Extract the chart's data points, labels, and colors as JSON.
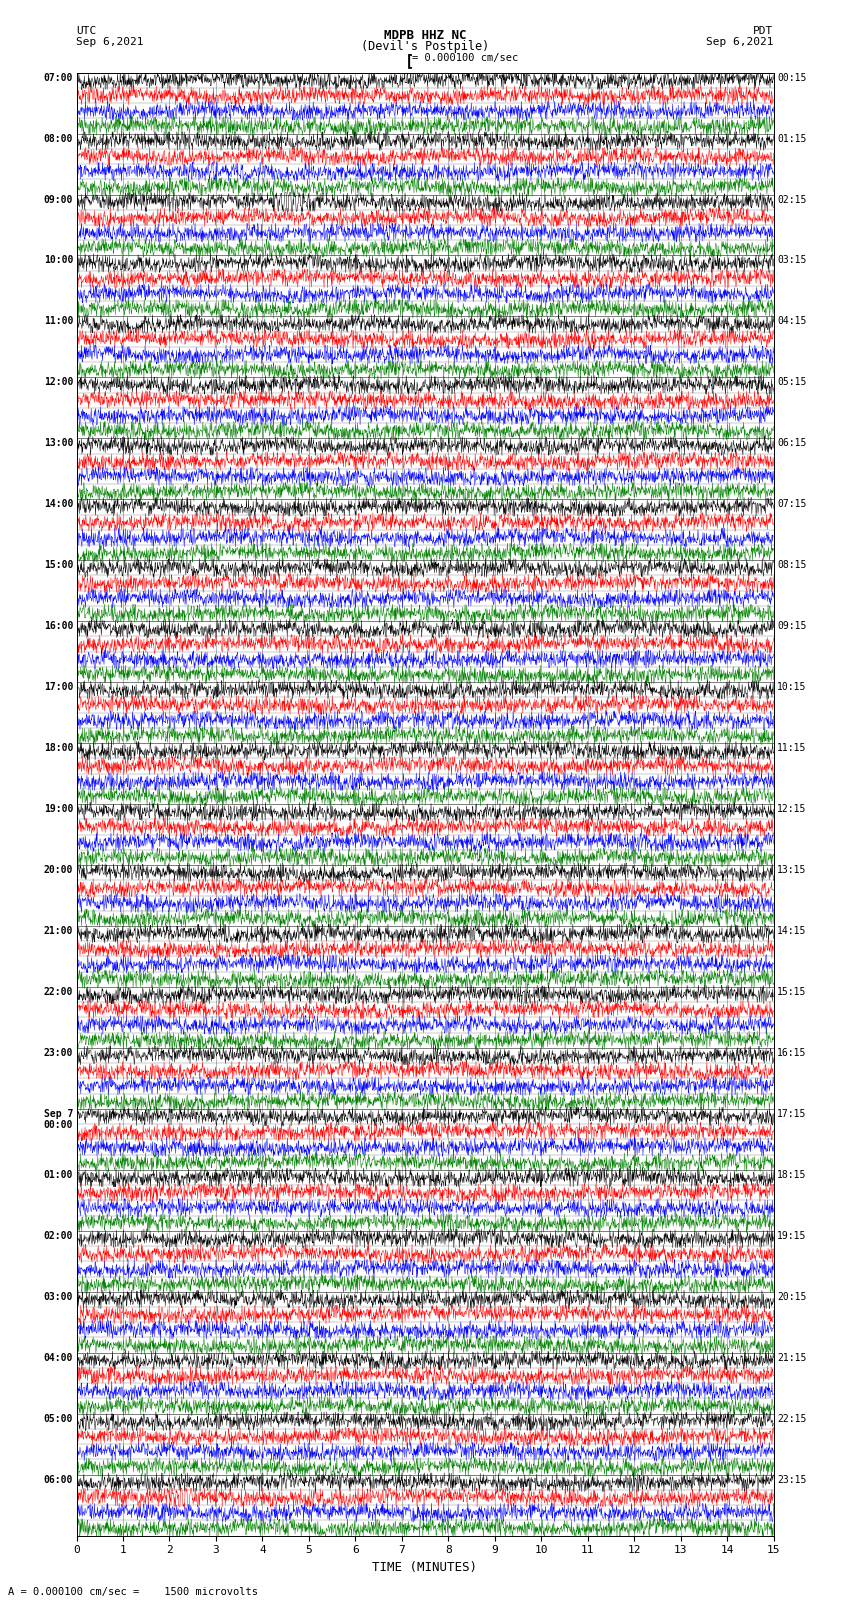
{
  "title_line1": "MDPB HHZ NC",
  "title_line2": "(Devil's Postpile)",
  "scale_label": "= 0.000100 cm/sec",
  "footer_label": "A = 0.000100 cm/sec =    1500 microvolts",
  "xlabel": "TIME (MINUTES)",
  "utc_labels": [
    "07:00",
    "08:00",
    "09:00",
    "10:00",
    "11:00",
    "12:00",
    "13:00",
    "14:00",
    "15:00",
    "16:00",
    "17:00",
    "18:00",
    "19:00",
    "20:00",
    "21:00",
    "22:00",
    "23:00",
    "Sep 7\n00:00",
    "01:00",
    "02:00",
    "03:00",
    "04:00",
    "05:00",
    "06:00"
  ],
  "pdt_labels": [
    "00:15",
    "01:15",
    "02:15",
    "03:15",
    "04:15",
    "05:15",
    "06:15",
    "07:15",
    "08:15",
    "09:15",
    "10:15",
    "11:15",
    "12:15",
    "13:15",
    "14:15",
    "15:15",
    "16:15",
    "17:15",
    "18:15",
    "19:15",
    "20:15",
    "21:15",
    "22:15",
    "23:15"
  ],
  "trace_colors": [
    "black",
    "red",
    "blue",
    "green"
  ],
  "num_rows": 96,
  "rows_per_hour": 4,
  "time_range": [
    0,
    15
  ],
  "background_color": "white",
  "grid_color": "black"
}
